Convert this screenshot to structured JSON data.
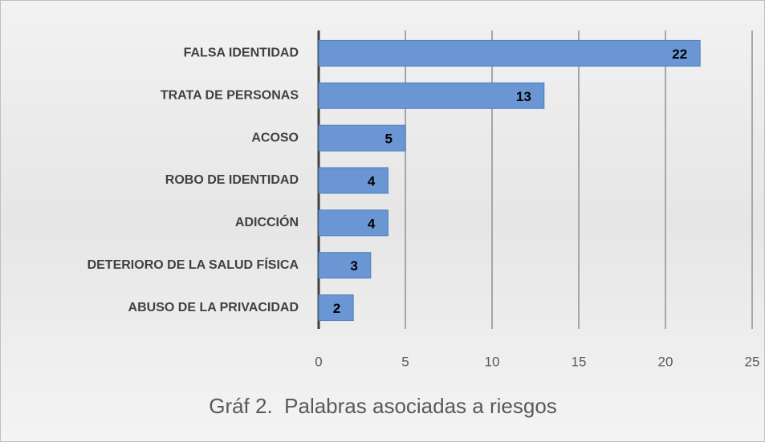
{
  "chart_data": {
    "type": "bar",
    "orientation": "horizontal",
    "title": "Gráf 2.  Palabras asociadas a riesgos",
    "categories": [
      "FALSA IDENTIDAD",
      "TRATA DE PERSONAS",
      "ACOSO",
      "ROBO DE IDENTIDAD",
      "ADICCIÓN",
      "DETERIORO DE LA SALUD FÍSICA",
      "ABUSO DE LA PRIVACIDAD"
    ],
    "values": [
      22,
      13,
      5,
      4,
      4,
      3,
      2
    ],
    "color": "#6a96d4",
    "xlim": [
      0,
      25
    ],
    "xticks": [
      0,
      5,
      10,
      15,
      20,
      25
    ],
    "grid": true
  }
}
